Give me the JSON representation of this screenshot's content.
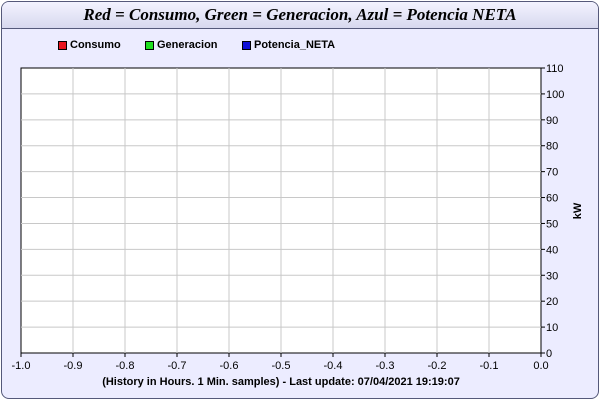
{
  "chart_data": {
    "type": "line",
    "title": "Red = Consumo, Green = Generacion, Azul = Potencia NETA",
    "xlabel": "(History in Hours. 1 Min. samples) - Last update: 07/04/2021 19:19:07",
    "ylabel": "kW",
    "xlim": [
      -1.0,
      0.0
    ],
    "ylim": [
      0,
      110
    ],
    "x_ticks": [
      "-1.0",
      "-0.9",
      "-0.8",
      "-0.7",
      "-0.6",
      "-0.5",
      "-0.4",
      "-0.3",
      "-0.2",
      "-0.1",
      "0.0"
    ],
    "y_ticks": [
      "110",
      "100",
      "90",
      "80",
      "70",
      "60",
      "50",
      "40",
      "30",
      "20",
      "10",
      "0"
    ],
    "grid": true,
    "legend_position": "top-left",
    "series": [
      {
        "name": "Consumo",
        "color": "#e8151e",
        "values": []
      },
      {
        "name": "Generacion",
        "color": "#1fe01f",
        "values": []
      },
      {
        "name": "Potencia_NETA",
        "color": "#0f0fd6",
        "values": []
      }
    ]
  }
}
